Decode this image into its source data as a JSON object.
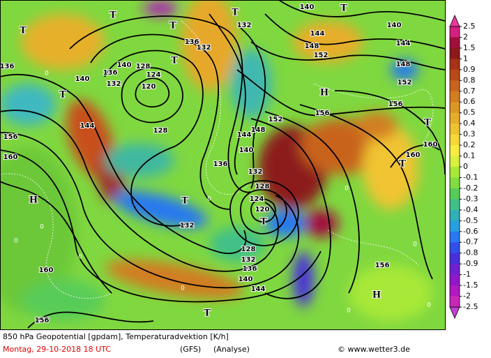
{
  "map_labels": [
    "136",
    "140",
    "144",
    "156",
    "160",
    "H",
    "T",
    "T",
    "T",
    "T",
    "T",
    "T",
    "132",
    "144",
    "148",
    "152",
    "144",
    "140",
    "140",
    "148",
    "152",
    "156",
    "H",
    "156",
    "152",
    "148",
    "144",
    "140",
    "136",
    "132",
    "128",
    "124",
    "120",
    "T",
    "128",
    "132",
    "136",
    "140",
    "144",
    "136",
    "132",
    "124",
    "120",
    "128",
    "140",
    "136",
    "132",
    "128",
    "T",
    "T",
    "132",
    "T",
    "T",
    "160",
    "160",
    "156",
    "H",
    "160",
    "156",
    "T",
    "0",
    "0",
    "0",
    "0",
    "0",
    "0",
    "0",
    "0",
    "0",
    "0"
  ],
  "colorbar": {
    "labels": [
      "2.5",
      "2",
      "1.5",
      "1",
      "0.9",
      "0.8",
      "0.7",
      "0.6",
      "0.5",
      "0.4",
      "0.3",
      "0.2",
      "0.1",
      "0",
      "-0.1",
      "-0.2",
      "-0.3",
      "-0.4",
      "-0.5",
      "-0.6",
      "-0.7",
      "-0.8",
      "-0.9",
      "-1",
      "-1.5",
      "-2",
      "-2.5"
    ],
    "colors": [
      "#d42080",
      "#a0103c",
      "#8c1a1a",
      "#a83218",
      "#b84a1a",
      "#c8641e",
      "#d27d20",
      "#dc9626",
      "#e6ad2a",
      "#f0c430",
      "#f8d838",
      "#f8ec40",
      "#d8f040",
      "#a8e838",
      "#80dc40",
      "#58cc58",
      "#40c088",
      "#30b0b8",
      "#28a0e0",
      "#2878f0",
      "#3050e8",
      "#4830d8",
      "#7020d0",
      "#9018c8",
      "#b018c0",
      "#c828b8"
    ],
    "top_color": "#e8389c",
    "bottom_color": "#c040d0"
  },
  "footer": {
    "line1": "850 hPa Geopotential [gpdam], Temperaturadvektion [K/h]",
    "date": "Montag, 29-10-2018  18 UTC",
    "model": "(GFS)",
    "run": "(Analyse)",
    "copyright": "© www.wetter3.de"
  }
}
